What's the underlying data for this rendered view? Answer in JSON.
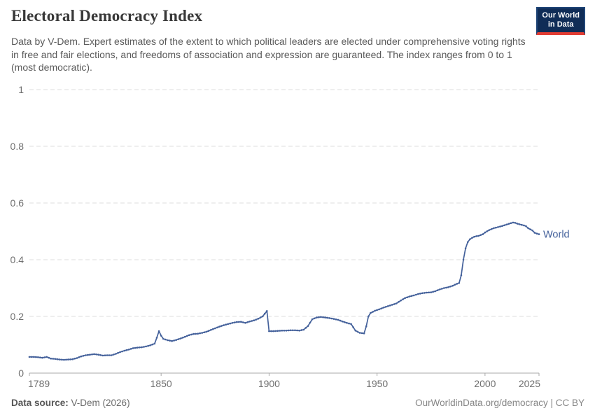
{
  "header": {
    "title": "Electoral Democracy Index",
    "subtitle": "Data by V-Dem. Expert estimates of the extent to which political leaders are elected under comprehensive voting rights in free and fair elections, and freedoms of association and expression are guaranteed. The index ranges from 0 to 1 (most democratic).",
    "logo": {
      "line1": "Our World",
      "line2": "in Data"
    }
  },
  "footer": {
    "source_label": "Data source:",
    "source_value": " V-Dem (2026)",
    "right": "OurWorldinData.org/democracy | CC BY"
  },
  "colors": {
    "line": "#44619b",
    "grid": "#dcdcdc",
    "axis": "#a9a9a9",
    "tick_text": "#6f6f6f",
    "logo_navy": "#102d57",
    "logo_red": "#e23d33"
  },
  "chart_data": {
    "type": "line",
    "title": "Electoral Democracy Index",
    "xlabel": "",
    "ylabel": "",
    "xlim": [
      1789,
      2025
    ],
    "ylim": [
      0,
      1
    ],
    "grid": "horizontal-dashed",
    "legend_position": "end-of-line-label",
    "x_ticks": [
      {
        "year": 1789,
        "label": "1789"
      },
      {
        "year": 1850,
        "label": "1850"
      },
      {
        "year": 1900,
        "label": "1900"
      },
      {
        "year": 1950,
        "label": "1950"
      },
      {
        "year": 2000,
        "label": "2000"
      },
      {
        "year": 2025,
        "label": "2025"
      }
    ],
    "y_ticks": [
      {
        "value": 1,
        "label": "1"
      },
      {
        "value": 0.8,
        "label": "0.8"
      },
      {
        "value": 0.6,
        "label": "0.6"
      },
      {
        "value": 0.4,
        "label": "0.4"
      },
      {
        "value": 0.2,
        "label": "0.2"
      },
      {
        "value": 0,
        "label": "0"
      }
    ],
    "series": [
      {
        "name": "World",
        "color": "#44619b",
        "points": [
          [
            1789,
            0.057
          ],
          [
            1791,
            0.057
          ],
          [
            1793,
            0.056
          ],
          [
            1795,
            0.054
          ],
          [
            1797,
            0.057
          ],
          [
            1799,
            0.051
          ],
          [
            1801,
            0.05
          ],
          [
            1803,
            0.048
          ],
          [
            1805,
            0.047
          ],
          [
            1807,
            0.048
          ],
          [
            1809,
            0.049
          ],
          [
            1811,
            0.053
          ],
          [
            1813,
            0.059
          ],
          [
            1815,
            0.063
          ],
          [
            1817,
            0.065
          ],
          [
            1819,
            0.067
          ],
          [
            1821,
            0.065
          ],
          [
            1823,
            0.062
          ],
          [
            1825,
            0.063
          ],
          [
            1827,
            0.063
          ],
          [
            1829,
            0.068
          ],
          [
            1831,
            0.074
          ],
          [
            1833,
            0.079
          ],
          [
            1835,
            0.083
          ],
          [
            1837,
            0.088
          ],
          [
            1839,
            0.09
          ],
          [
            1841,
            0.091
          ],
          [
            1843,
            0.094
          ],
          [
            1845,
            0.098
          ],
          [
            1847,
            0.104
          ],
          [
            1848,
            0.125
          ],
          [
            1849,
            0.148
          ],
          [
            1850,
            0.132
          ],
          [
            1851,
            0.121
          ],
          [
            1853,
            0.116
          ],
          [
            1855,
            0.113
          ],
          [
            1857,
            0.117
          ],
          [
            1859,
            0.122
          ],
          [
            1861,
            0.128
          ],
          [
            1863,
            0.134
          ],
          [
            1865,
            0.138
          ],
          [
            1867,
            0.139
          ],
          [
            1869,
            0.142
          ],
          [
            1871,
            0.146
          ],
          [
            1873,
            0.152
          ],
          [
            1875,
            0.158
          ],
          [
            1877,
            0.164
          ],
          [
            1879,
            0.169
          ],
          [
            1881,
            0.173
          ],
          [
            1883,
            0.177
          ],
          [
            1885,
            0.18
          ],
          [
            1887,
            0.181
          ],
          [
            1889,
            0.177
          ],
          [
            1891,
            0.182
          ],
          [
            1893,
            0.186
          ],
          [
            1895,
            0.192
          ],
          [
            1897,
            0.2
          ],
          [
            1899,
            0.219
          ],
          [
            1900,
            0.148
          ],
          [
            1902,
            0.148
          ],
          [
            1904,
            0.149
          ],
          [
            1906,
            0.15
          ],
          [
            1908,
            0.15
          ],
          [
            1910,
            0.151
          ],
          [
            1912,
            0.151
          ],
          [
            1914,
            0.15
          ],
          [
            1916,
            0.153
          ],
          [
            1918,
            0.166
          ],
          [
            1920,
            0.19
          ],
          [
            1922,
            0.196
          ],
          [
            1924,
            0.198
          ],
          [
            1926,
            0.196
          ],
          [
            1928,
            0.194
          ],
          [
            1930,
            0.191
          ],
          [
            1932,
            0.188
          ],
          [
            1934,
            0.182
          ],
          [
            1936,
            0.177
          ],
          [
            1938,
            0.173
          ],
          [
            1940,
            0.15
          ],
          [
            1942,
            0.142
          ],
          [
            1944,
            0.14
          ],
          [
            1945,
            0.165
          ],
          [
            1946,
            0.2
          ],
          [
            1947,
            0.212
          ],
          [
            1949,
            0.22
          ],
          [
            1951,
            0.225
          ],
          [
            1953,
            0.231
          ],
          [
            1955,
            0.236
          ],
          [
            1957,
            0.241
          ],
          [
            1959,
            0.246
          ],
          [
            1961,
            0.256
          ],
          [
            1963,
            0.265
          ],
          [
            1965,
            0.27
          ],
          [
            1967,
            0.274
          ],
          [
            1969,
            0.279
          ],
          [
            1971,
            0.282
          ],
          [
            1973,
            0.284
          ],
          [
            1975,
            0.285
          ],
          [
            1977,
            0.289
          ],
          [
            1979,
            0.295
          ],
          [
            1981,
            0.3
          ],
          [
            1983,
            0.303
          ],
          [
            1985,
            0.308
          ],
          [
            1987,
            0.315
          ],
          [
            1988,
            0.318
          ],
          [
            1989,
            0.345
          ],
          [
            1990,
            0.4
          ],
          [
            1991,
            0.44
          ],
          [
            1992,
            0.462
          ],
          [
            1993,
            0.472
          ],
          [
            1994,
            0.477
          ],
          [
            1995,
            0.481
          ],
          [
            1996,
            0.483
          ],
          [
            1997,
            0.484
          ],
          [
            1998,
            0.487
          ],
          [
            1999,
            0.49
          ],
          [
            2000,
            0.496
          ],
          [
            2002,
            0.505
          ],
          [
            2004,
            0.511
          ],
          [
            2006,
            0.515
          ],
          [
            2008,
            0.519
          ],
          [
            2010,
            0.524
          ],
          [
            2012,
            0.529
          ],
          [
            2013,
            0.531
          ],
          [
            2014,
            0.53
          ],
          [
            2015,
            0.527
          ],
          [
            2016,
            0.525
          ],
          [
            2017,
            0.523
          ],
          [
            2018,
            0.521
          ],
          [
            2019,
            0.518
          ],
          [
            2020,
            0.511
          ],
          [
            2021,
            0.507
          ],
          [
            2022,
            0.503
          ],
          [
            2023,
            0.495
          ],
          [
            2024,
            0.492
          ],
          [
            2025,
            0.49
          ]
        ]
      }
    ]
  }
}
